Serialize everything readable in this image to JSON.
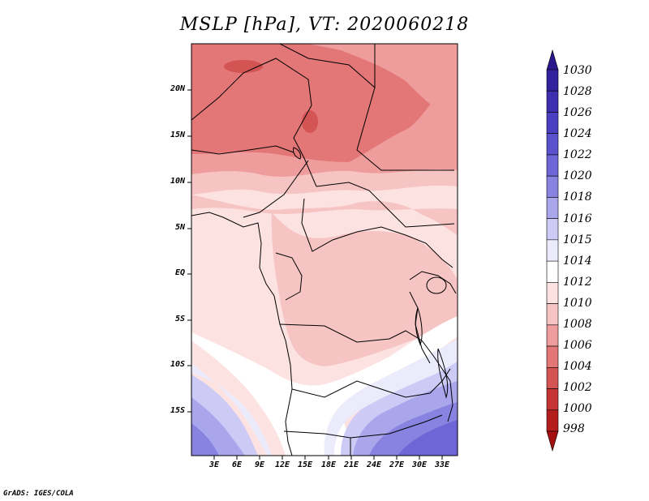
{
  "title": "MSLP [hPa], VT: 2020060218",
  "credit": "GrADS: IGES/COLA",
  "map": {
    "lat_labels": [
      "20N",
      "15N",
      "10N",
      "5N",
      "EQ",
      "5S",
      "10S",
      "15S"
    ],
    "lon_labels": [
      "3E",
      "6E",
      "9E",
      "12E",
      "15E",
      "18E",
      "21E",
      "24E",
      "27E",
      "30E",
      "33E"
    ]
  },
  "colorbar": {
    "labels": [
      "1030",
      "1028",
      "1026",
      "1024",
      "1022",
      "1020",
      "1018",
      "1016",
      "1015",
      "1014",
      "1012",
      "1010",
      "1008",
      "1006",
      "1004",
      "1002",
      "1000",
      "998"
    ],
    "colors": [
      "#2a178c",
      "#33229e",
      "#3d2fb0",
      "#4a3fc0",
      "#5a51cc",
      "#6e66d6",
      "#8882e0",
      "#a9a6ec",
      "#cdcbf6",
      "#ecebfc",
      "#ffffff",
      "#fde2e2",
      "#f7c4c4",
      "#ee9c9c",
      "#e37676",
      "#d45454",
      "#c43434",
      "#b51c1c",
      "#a51111"
    ]
  }
}
